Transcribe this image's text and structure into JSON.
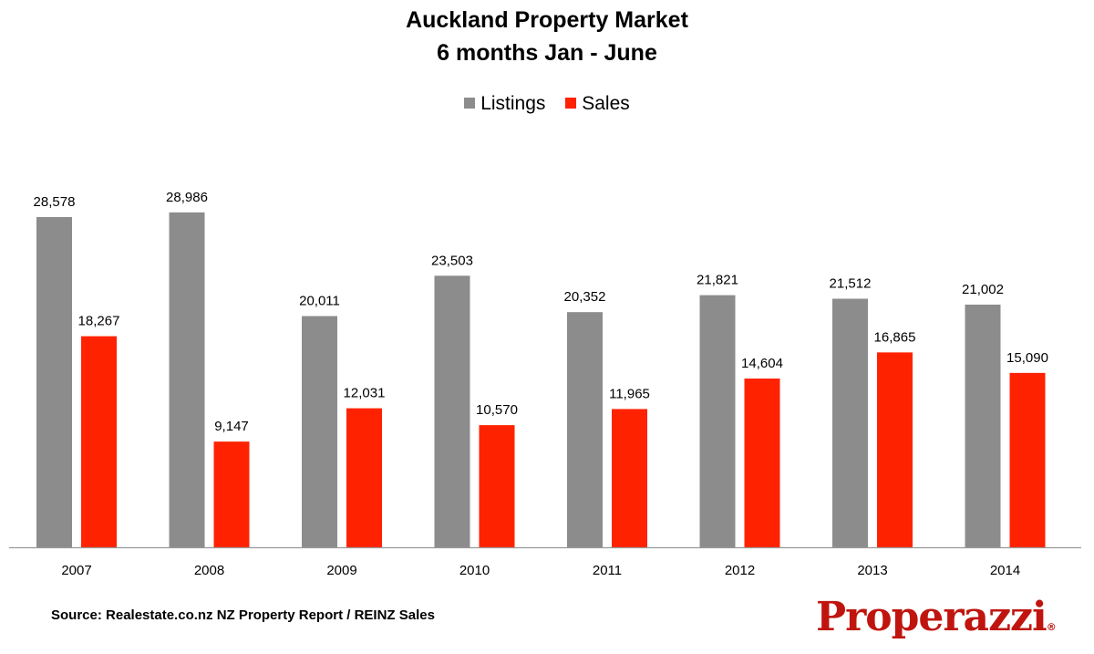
{
  "chart_data": {
    "type": "bar",
    "title": "Auckland Property Market",
    "subtitle": "6 months Jan - June",
    "categories": [
      "2007",
      "2008",
      "2009",
      "2010",
      "2011",
      "2012",
      "2013",
      "2014"
    ],
    "series": [
      {
        "name": "Listings",
        "color": "#8c8c8c",
        "values": [
          28578,
          28986,
          20011,
          23503,
          20352,
          21821,
          21512,
          21002
        ],
        "labels": [
          "28,578",
          "28,986",
          "20,011",
          "23,503",
          "20,352",
          "21,821",
          "21,512",
          "21,002"
        ]
      },
      {
        "name": "Sales",
        "color": "#ff2200",
        "values": [
          18267,
          9147,
          12031,
          10570,
          11965,
          14604,
          16865,
          15090
        ],
        "labels": [
          "18,267",
          "9,147",
          "12,031",
          "10,570",
          "11,965",
          "14,604",
          "16,865",
          "15,090"
        ]
      }
    ],
    "ylim": [
      0,
      30000
    ],
    "grid": false,
    "legend": "top-center",
    "xlabel": "",
    "ylabel": ""
  },
  "source": "Source: Realestate.co.nz NZ Property Report / REINZ Sales",
  "logo": {
    "text": "Properazzi",
    "mark": "®",
    "color": "#c0150f"
  }
}
